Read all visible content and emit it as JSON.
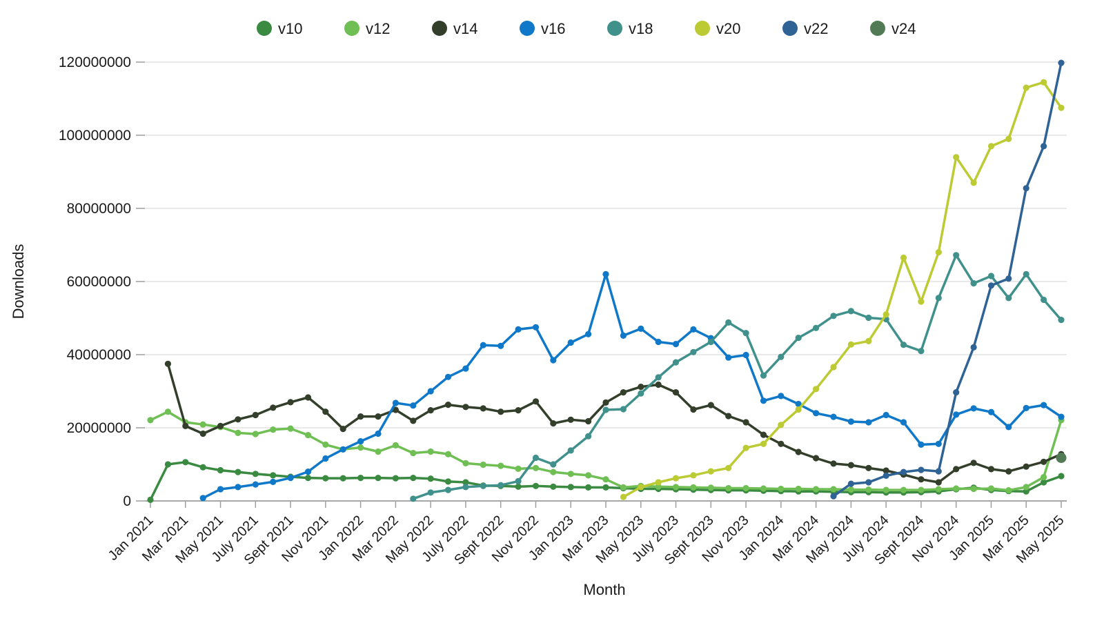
{
  "chart_data": {
    "type": "line",
    "title": "",
    "xlabel": "Month",
    "ylabel": "Downloads",
    "ylim": [
      0,
      120000000
    ],
    "ytick_step": 20000000,
    "y_tick_labels": [
      "0",
      "20000000",
      "40000000",
      "60000000",
      "80000000",
      "100000000",
      "120000000"
    ],
    "grid": "horizontal",
    "legend_position": "top",
    "x_tick_every": 2,
    "x_tick_labels": [
      "Jan 2021",
      "Mar 2021",
      "May 2021",
      "July 2021",
      "Sept 2021",
      "Nov 2021",
      "Jan 2022",
      "Mar 2022",
      "May 2022",
      "July 2022",
      "Sept 2022",
      "Nov 2022",
      "Jan 2023",
      "Mar 2023",
      "May 2023",
      "July 2023",
      "Sept 2023",
      "Nov 2023",
      "Jan 2024",
      "Mar 2024",
      "May 2024",
      "July 2024",
      "Sept 2024",
      "Nov 2024",
      "Jan 2025",
      "Mar 2025",
      "May 2025"
    ],
    "x": [
      "Jan 2021",
      "Feb 2021",
      "Mar 2021",
      "Apr 2021",
      "May 2021",
      "Jun 2021",
      "July 2021",
      "Aug 2021",
      "Sept 2021",
      "Oct 2021",
      "Nov 2021",
      "Dec 2021",
      "Jan 2022",
      "Feb 2022",
      "Mar 2022",
      "Apr 2022",
      "May 2022",
      "Jun 2022",
      "July 2022",
      "Aug 2022",
      "Sept 2022",
      "Oct 2022",
      "Nov 2022",
      "Dec 2022",
      "Jan 2023",
      "Feb 2023",
      "Mar 2023",
      "Apr 2023",
      "May 2023",
      "Jun 2023",
      "July 2023",
      "Aug 2023",
      "Sept 2023",
      "Oct 2023",
      "Nov 2023",
      "Dec 2023",
      "Jan 2024",
      "Feb 2024",
      "Mar 2024",
      "Apr 2024",
      "May 2024",
      "Jun 2024",
      "July 2024",
      "Aug 2024",
      "Sept 2024",
      "Oct 2024",
      "Nov 2024",
      "Dec 2024",
      "Jan 2025",
      "Feb 2025",
      "Mar 2025",
      "Apr 2025",
      "May 2025"
    ],
    "series": [
      {
        "name": "v10",
        "color": "#3a8a41",
        "values": [
          300000,
          10000000,
          10600000,
          9200000,
          8400000,
          7900000,
          7400000,
          7000000,
          6600000,
          6300000,
          6200000,
          6200000,
          6300000,
          6300000,
          6200000,
          6300000,
          6100000,
          5300000,
          5100000,
          4200000,
          4100000,
          3900000,
          4100000,
          3900000,
          3800000,
          3700000,
          3700000,
          3500000,
          3300000,
          3300000,
          3200000,
          3100000,
          3000000,
          2900000,
          2900000,
          2800000,
          2700000,
          2600000,
          2600000,
          2500000,
          2400000,
          2400000,
          2300000,
          2300000,
          2400000,
          2600000,
          3200000,
          3600000,
          3000000,
          2700000,
          2600000,
          5100000,
          6800000
        ]
      },
      {
        "name": "v12",
        "color": "#6fbf54",
        "values": [
          22100000,
          24400000,
          21500000,
          20900000,
          20200000,
          18600000,
          18300000,
          19500000,
          19800000,
          18000000,
          15400000,
          14100000,
          14600000,
          13500000,
          15200000,
          13100000,
          13500000,
          12800000,
          10300000,
          9900000,
          9600000,
          8800000,
          9000000,
          7900000,
          7400000,
          7000000,
          5900000,
          3700000,
          4100000,
          3900000,
          3800000,
          3700000,
          3600000,
          3500000,
          3500000,
          3400000,
          3300000,
          3300000,
          3200000,
          3200000,
          3100000,
          3100000,
          3000000,
          3000000,
          3000000,
          3200000,
          3400000,
          3300000,
          3400000,
          2900000,
          3800000,
          6500000,
          22100000
        ]
      },
      {
        "name": "v14",
        "color": "#333f2b",
        "values": [
          null,
          37500000,
          20500000,
          18400000,
          20500000,
          22300000,
          23500000,
          25500000,
          27000000,
          28300000,
          24400000,
          19700000,
          23100000,
          23100000,
          24900000,
          21900000,
          24800000,
          26300000,
          25700000,
          25300000,
          24400000,
          24800000,
          27200000,
          21200000,
          22200000,
          21800000,
          26900000,
          29700000,
          31200000,
          31800000,
          29700000,
          25000000,
          26200000,
          23200000,
          21500000,
          18100000,
          15600000,
          13400000,
          11700000,
          10200000,
          9800000,
          9000000,
          8300000,
          7200000,
          5900000,
          5100000,
          8700000,
          10400000,
          8700000,
          8100000,
          9400000,
          10700000,
          12800000
        ]
      },
      {
        "name": "v16",
        "color": "#0f78c8",
        "values": [
          null,
          null,
          null,
          800000,
          3200000,
          3800000,
          4500000,
          5200000,
          6300000,
          8000000,
          11600000,
          14100000,
          16300000,
          18400000,
          26800000,
          26100000,
          30000000,
          33900000,
          36200000,
          42600000,
          42400000,
          46900000,
          47500000,
          38500000,
          43300000,
          45600000,
          62000000,
          45200000,
          47100000,
          43500000,
          42900000,
          46900000,
          44500000,
          39200000,
          39900000,
          27400000,
          28700000,
          26500000,
          24000000,
          23000000,
          21700000,
          21500000,
          23500000,
          21500000,
          15400000,
          15600000,
          23600000,
          25300000,
          24300000,
          20200000,
          25400000,
          26200000,
          23000000
        ]
      },
      {
        "name": "v18",
        "color": "#40918c",
        "values": [
          null,
          null,
          null,
          null,
          null,
          null,
          null,
          null,
          null,
          null,
          null,
          null,
          null,
          null,
          null,
          600000,
          2300000,
          3000000,
          3800000,
          4100000,
          4300000,
          5400000,
          11800000,
          10000000,
          13800000,
          17700000,
          24900000,
          25100000,
          29400000,
          33800000,
          37900000,
          40700000,
          43500000,
          48800000,
          45900000,
          34300000,
          39400000,
          44600000,
          47300000,
          50600000,
          51900000,
          50100000,
          49700000,
          42700000,
          41000000,
          55500000,
          67200000,
          59500000,
          61500000,
          55500000,
          62000000,
          55000000,
          49500000
        ]
      },
      {
        "name": "v20",
        "color": "#bccb33",
        "values": [
          null,
          null,
          null,
          null,
          null,
          null,
          null,
          null,
          null,
          null,
          null,
          null,
          null,
          null,
          null,
          null,
          null,
          null,
          null,
          null,
          null,
          null,
          null,
          null,
          null,
          null,
          null,
          1100000,
          3800000,
          5100000,
          6200000,
          7000000,
          8100000,
          9000000,
          14500000,
          15600000,
          20800000,
          25000000,
          30600000,
          36600000,
          42800000,
          43700000,
          51000000,
          66500000,
          54500000,
          68000000,
          94000000,
          87000000,
          97000000,
          99000000,
          113000000,
          114500000,
          107500000
        ]
      },
      {
        "name": "v22",
        "color": "#2f6295",
        "values": [
          null,
          null,
          null,
          null,
          null,
          null,
          null,
          null,
          null,
          null,
          null,
          null,
          null,
          null,
          null,
          null,
          null,
          null,
          null,
          null,
          null,
          null,
          null,
          null,
          null,
          null,
          null,
          null,
          null,
          null,
          null,
          null,
          null,
          null,
          null,
          null,
          null,
          null,
          null,
          1300000,
          4700000,
          5100000,
          6900000,
          7900000,
          8500000,
          8100000,
          29700000,
          42000000,
          58900000,
          60800000,
          85500000,
          97000000,
          119800000
        ]
      },
      {
        "name": "v24",
        "color": "#517a55",
        "values": [
          null,
          null,
          null,
          null,
          null,
          null,
          null,
          null,
          null,
          null,
          null,
          null,
          null,
          null,
          null,
          null,
          null,
          null,
          null,
          null,
          null,
          null,
          null,
          null,
          null,
          null,
          null,
          null,
          null,
          null,
          null,
          null,
          null,
          null,
          null,
          null,
          null,
          null,
          null,
          null,
          null,
          null,
          null,
          null,
          null,
          null,
          null,
          null,
          null,
          null,
          null,
          null,
          11800000
        ]
      }
    ],
    "colors": {
      "background": "#ffffff",
      "gridline": "#dcdcdc",
      "zero_line": "#8a8a8a",
      "tick_mark": "#9e9e9e",
      "text": "#1a1a1a"
    }
  },
  "legend": {
    "items": [
      {
        "label": "v10",
        "color": "#3a8a41"
      },
      {
        "label": "v12",
        "color": "#6fbf54"
      },
      {
        "label": "v14",
        "color": "#333f2b"
      },
      {
        "label": "v16",
        "color": "#0f78c8"
      },
      {
        "label": "v18",
        "color": "#40918c"
      },
      {
        "label": "v20",
        "color": "#bccb33"
      },
      {
        "label": "v22",
        "color": "#2f6295"
      },
      {
        "label": "v24",
        "color": "#517a55"
      }
    ]
  },
  "axes": {
    "x_title": "Month",
    "y_title": "Downloads"
  }
}
